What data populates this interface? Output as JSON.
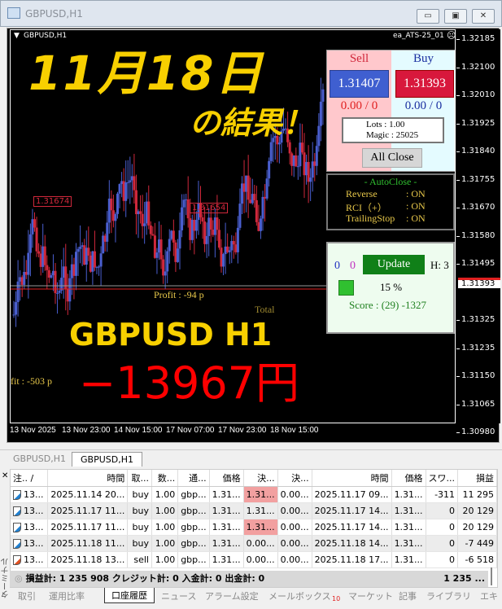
{
  "window": {
    "title": "GBPUSD,H1",
    "buttons": [
      "minimize",
      "restore",
      "close"
    ]
  },
  "chart": {
    "symbol_label": "GBPUSD,H1",
    "ea_label": "ea_ATS-25_01",
    "ea_status_icon": "sad-face-icon",
    "price_ticks": [
      "1.32185",
      "1.32100",
      "1.32010",
      "1.31925",
      "1.31840",
      "1.31755",
      "1.31670",
      "1.31580",
      "1.31495",
      "1.31325",
      "1.31235",
      "1.31150",
      "1.31065",
      "1.30980"
    ],
    "current_price": "1.31393",
    "time_ticks": [
      "13 Nov 2025",
      "13 Nov 23:00",
      "14 Nov 15:00",
      "17 Nov 07:00",
      "17 Nov 23:00",
      "18 Nov 15:00"
    ],
    "labels": {
      "level1": "1.31674",
      "level2": "1.31654",
      "profit1": "Profit : -94 p",
      "profit2": "fit : -503 p",
      "total": "Total"
    },
    "overlay": {
      "date": "11月18日",
      "result": "の結果！",
      "pair": "GBPUSD H1",
      "amount": "−13967円"
    },
    "colors": {
      "bull": "#4a5fd0",
      "bear": "#d0283c",
      "overlay_yellow": "#f8d000",
      "overlay_red": "#ff0000"
    }
  },
  "trade_panel": {
    "sell_label": "Sell",
    "buy_label": "Buy",
    "sell_price": "1.31407",
    "buy_price": "1.31393",
    "sell_pos": "0.00 / 0",
    "buy_pos": "0.00 / 0",
    "lots": "Lots   : 1.00",
    "magic": "Magic : 25025",
    "all_close": "All Close",
    "autoclose_title": "- AutoClose -",
    "autoclose": [
      {
        "k": "Reverse",
        "v": ": ON"
      },
      {
        "k": "RCI（+）",
        "v": ": ON"
      },
      {
        "k": "TrailingStop",
        "v": ": ON"
      }
    ],
    "count_blue": "0",
    "count_magenta": "0",
    "update": "Update",
    "h": "H: 3",
    "percent": "15 %",
    "score": "Score : (29) -1327"
  },
  "chart_tabs": [
    "GBPUSD,H1",
    "GBPUSD,H1"
  ],
  "terminal": {
    "side_label": "ターミナル",
    "columns": [
      "注.. /",
      "時間",
      "取...",
      "数...",
      "通...",
      "価格",
      "決...",
      "決...",
      "時間",
      "価格",
      "スワ...",
      "損益"
    ],
    "rows": [
      [
        "13...",
        "2025.11.14 20...",
        "buy",
        "1.00",
        "gbp...",
        "1.31...",
        "1.31...",
        "0.00...",
        "2025.11.17 09...",
        "1.31...",
        "-311",
        "11 295"
      ],
      [
        "13...",
        "2025.11.17 11...",
        "buy",
        "1.00",
        "gbp...",
        "1.31...",
        "1.31...",
        "0.00...",
        "2025.11.17 14...",
        "1.31...",
        "0",
        "20 129"
      ],
      [
        "13...",
        "2025.11.17 11...",
        "buy",
        "1.00",
        "gbp...",
        "1.31...",
        "1.31...",
        "0.00...",
        "2025.11.17 14...",
        "1.31...",
        "0",
        "20 129"
      ],
      [
        "13...",
        "2025.11.18 11...",
        "buy",
        "1.00",
        "gbp...",
        "1.31...",
        "0.00...",
        "0.00...",
        "2025.11.18 14...",
        "1.31...",
        "0",
        "-7 449"
      ],
      [
        "13...",
        "2025.11.18 13...",
        "sell",
        "1.00",
        "gbp...",
        "1.31...",
        "0.00...",
        "0.00...",
        "2025.11.18 17...",
        "1.31...",
        "0",
        "-6 518"
      ]
    ],
    "highlighted_rows": [
      0,
      1,
      2
    ],
    "summary": "損益計: 1 235 908  クレジット計: 0  入金計: 0  出金計: 0",
    "summary_total": "1 235 ...",
    "tabs": [
      "取引",
      "運用比率",
      "口座履歴",
      "ニュース",
      "アラーム設定",
      "メールボックス",
      "マーケット",
      "記事",
      "ライブラリ",
      "エキ"
    ],
    "mailbox_badge": "10",
    "active_tab": "口座履歴"
  }
}
